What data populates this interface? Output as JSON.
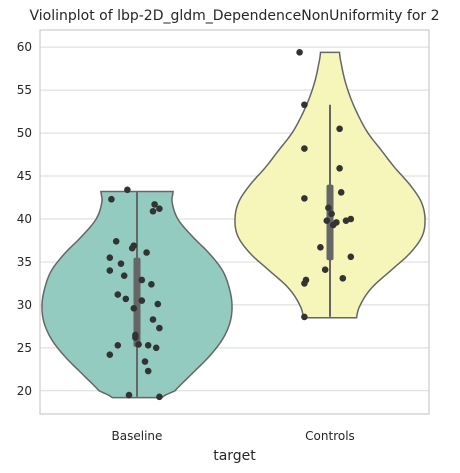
{
  "chart_data": {
    "type": "violin",
    "title": "Violinplot of lbp-2D_gldm_DependenceNonUniformity for 2",
    "xlabel": "target",
    "ylabel": "",
    "categories": [
      "Baseline",
      "Controls"
    ],
    "ylim": [
      17.3,
      62.0
    ],
    "yticks": [
      20,
      25,
      30,
      35,
      40,
      45,
      50,
      55,
      60
    ],
    "grid": true,
    "colors": {
      "Baseline": "#93cbc1",
      "Controls": "#f6f6ba",
      "outline": "#666666",
      "points": "#333333",
      "box": "#666666",
      "grid": "#d9d9d9",
      "frame": "#cccccc"
    },
    "violins": [
      {
        "name": "Baseline",
        "min": 19.2,
        "max": 43.3,
        "q1": 25.1,
        "median": 30.5,
        "q3": 35.5,
        "whisker_low": 19.3,
        "whisker_high": 43.2,
        "profile": [
          [
            19.2,
            0.26
          ],
          [
            20.0,
            0.4
          ],
          [
            22.0,
            0.58
          ],
          [
            24.0,
            0.76
          ],
          [
            26.0,
            0.9
          ],
          [
            28.0,
            0.98
          ],
          [
            30.0,
            1.0
          ],
          [
            32.0,
            0.97
          ],
          [
            34.0,
            0.9
          ],
          [
            36.0,
            0.76
          ],
          [
            38.0,
            0.58
          ],
          [
            40.0,
            0.43
          ],
          [
            42.0,
            0.37
          ],
          [
            43.2,
            0.38
          ]
        ],
        "points": [
          [
            -0.06,
            43.4
          ],
          [
            -0.16,
            42.3
          ],
          [
            0.11,
            41.7
          ],
          [
            0.14,
            41.2
          ],
          [
            0.1,
            40.9
          ],
          [
            -0.13,
            37.4
          ],
          [
            -0.02,
            36.9
          ],
          [
            -0.03,
            36.6
          ],
          [
            0.06,
            36.1
          ],
          [
            -0.17,
            35.5
          ],
          [
            -0.1,
            34.8
          ],
          [
            -0.17,
            34.0
          ],
          [
            -0.08,
            33.4
          ],
          [
            0.03,
            32.9
          ],
          [
            0.09,
            32.4
          ],
          [
            -0.12,
            31.2
          ],
          [
            -0.07,
            30.7
          ],
          [
            0.03,
            30.5
          ],
          [
            0.13,
            30.1
          ],
          [
            -0.02,
            29.6
          ],
          [
            0.1,
            28.3
          ],
          [
            0.14,
            27.3
          ],
          [
            -0.01,
            26.5
          ],
          [
            -0.01,
            26.2
          ],
          [
            -0.12,
            25.3
          ],
          [
            0.01,
            25.4
          ],
          [
            0.07,
            25.3
          ],
          [
            0.12,
            25.0
          ],
          [
            -0.17,
            24.2
          ],
          [
            0.05,
            23.4
          ],
          [
            0.07,
            22.3
          ],
          [
            -0.05,
            19.5
          ],
          [
            0.14,
            19.3
          ]
        ]
      },
      {
        "name": "Controls",
        "min": 28.5,
        "max": 59.4,
        "q1": 35.2,
        "median": 39.8,
        "q3": 44.0,
        "whisker_low": 28.6,
        "whisker_high": 53.3,
        "profile": [
          [
            28.5,
            0.28
          ],
          [
            30.0,
            0.32
          ],
          [
            32.0,
            0.44
          ],
          [
            34.0,
            0.64
          ],
          [
            36.0,
            0.84
          ],
          [
            38.0,
            0.97
          ],
          [
            40.0,
            1.0
          ],
          [
            42.0,
            0.96
          ],
          [
            44.0,
            0.84
          ],
          [
            46.0,
            0.68
          ],
          [
            48.0,
            0.54
          ],
          [
            50.0,
            0.4
          ],
          [
            52.0,
            0.3
          ],
          [
            54.0,
            0.22
          ],
          [
            56.0,
            0.16
          ],
          [
            58.0,
            0.12
          ],
          [
            59.4,
            0.1
          ]
        ],
        "points": [
          [
            -0.19,
            59.4
          ],
          [
            -0.16,
            53.3
          ],
          [
            0.06,
            50.5
          ],
          [
            -0.16,
            48.2
          ],
          [
            0.06,
            45.9
          ],
          [
            0.07,
            43.1
          ],
          [
            -0.16,
            42.4
          ],
          [
            -0.01,
            41.3
          ],
          [
            0.01,
            40.6
          ],
          [
            -0.02,
            39.8
          ],
          [
            0.1,
            39.8
          ],
          [
            0.13,
            40.0
          ],
          [
            0.04,
            39.6
          ],
          [
            0.02,
            39.3
          ],
          [
            -0.06,
            36.7
          ],
          [
            0.13,
            35.6
          ],
          [
            -0.03,
            34.1
          ],
          [
            0.08,
            33.1
          ],
          [
            -0.15,
            32.9
          ],
          [
            -0.16,
            32.5
          ],
          [
            -0.16,
            28.6
          ]
        ]
      }
    ]
  }
}
